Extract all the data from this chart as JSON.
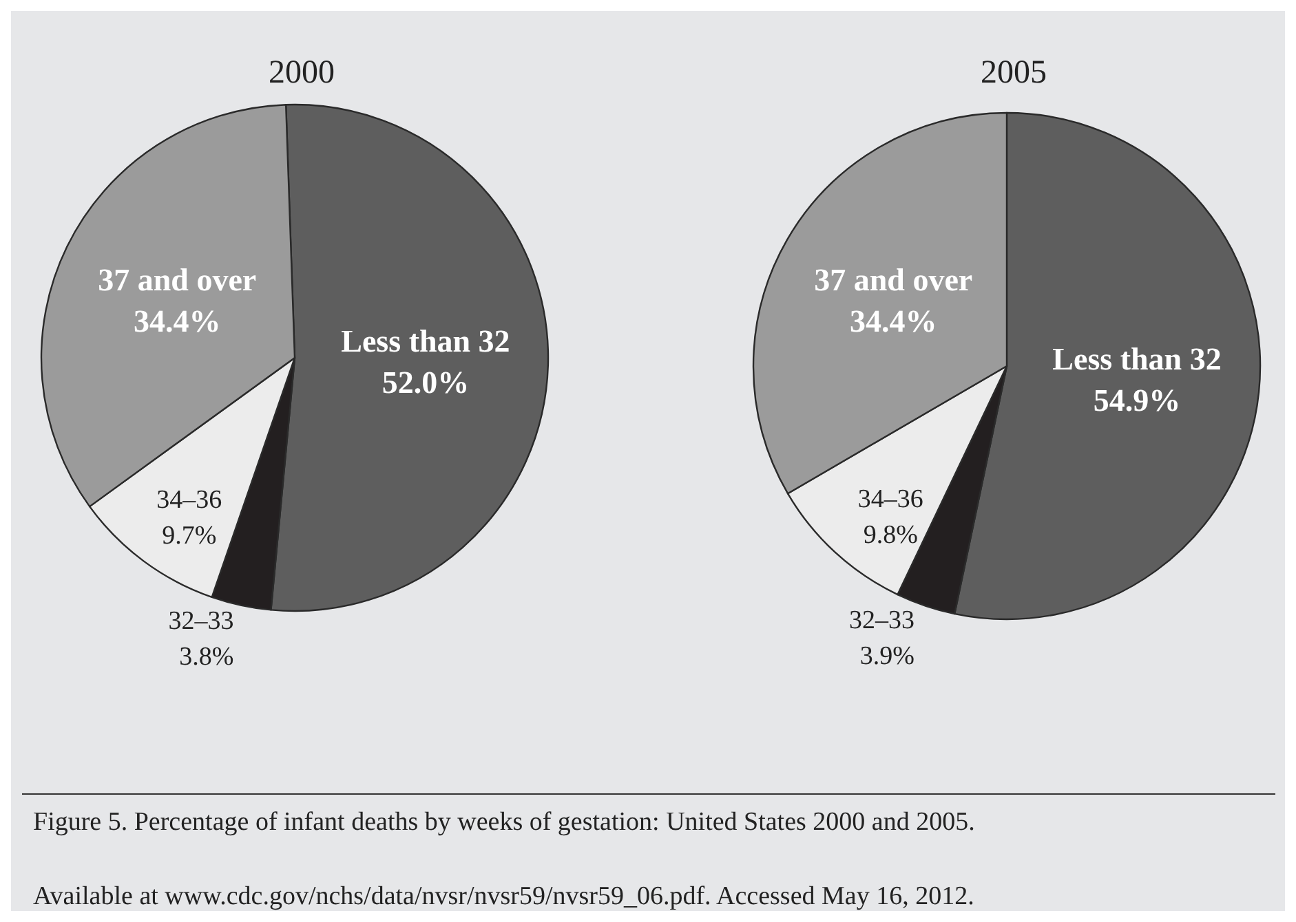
{
  "chart_data": [
    {
      "type": "pie",
      "title": "2000",
      "categories": [
        "Less than 32",
        "32–33",
        "34–36",
        "37 and over"
      ],
      "values": [
        52.0,
        3.8,
        9.7,
        34.4
      ],
      "value_labels": [
        "52.0%",
        "3.8%",
        "9.7%",
        "34.4%"
      ],
      "colors": [
        "#5e5e5e",
        "#231f20",
        "#ececec",
        "#9b9b9b"
      ],
      "annotations": [
        "Figure 5. Percentage of infant deaths by weeks of gestation: United States 2000 and 2005.",
        "Available at www.cdc.gov/nchs/data/nvsr/nvsr59/nvsr59_06.pdf. Accessed May 16, 2012."
      ]
    },
    {
      "type": "pie",
      "title": "2005",
      "categories": [
        "Less than 32",
        "32–33",
        "34–36",
        "37 and over"
      ],
      "values": [
        54.9,
        3.9,
        9.8,
        34.4
      ],
      "value_labels": [
        "54.9%",
        "3.9%",
        "9.8%",
        "34.4%"
      ],
      "colors": [
        "#5e5e5e",
        "#231f20",
        "#ececec",
        "#9b9b9b"
      ]
    }
  ]
}
